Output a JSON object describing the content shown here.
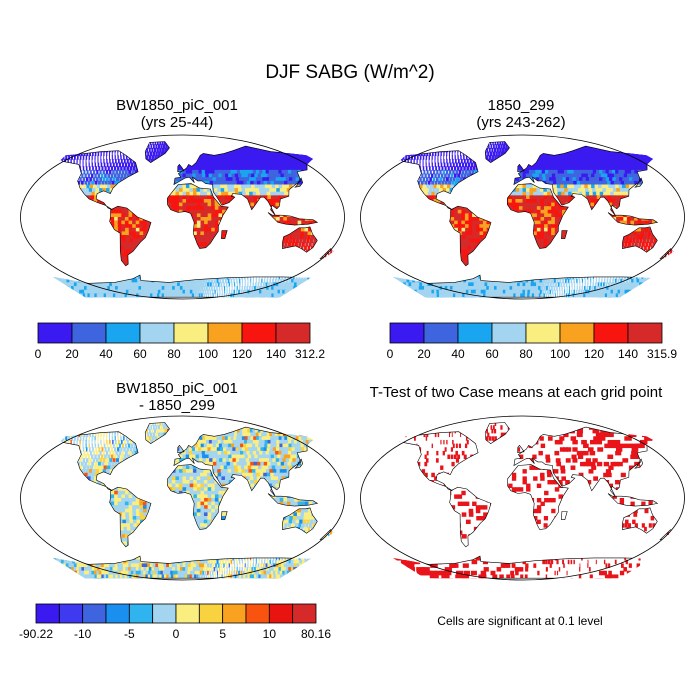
{
  "title": "DJF SABG (W/m^2)",
  "panels": {
    "tl": {
      "title_line1": "BW1850_piC_001",
      "title_line2": "(yrs 25-44)"
    },
    "tr": {
      "title_line1": "1850_299",
      "title_line2": "(yrs 243-262)"
    },
    "bl": {
      "title_line1": "BW1850_piC_001",
      "title_line2": "- 1850_299"
    },
    "br": {
      "title": "T-Test of two Case means at each grid point",
      "note": "Cells are significant at 0.1 level"
    }
  },
  "colorbars": {
    "tl": {
      "colors": [
        "#3a1af0",
        "#3f64e0",
        "#1aa5f0",
        "#a3d4f0",
        "#fbee80",
        "#f9a21f",
        "#f8140f",
        "#d62a2a"
      ],
      "labels": [
        "0",
        "20",
        "40",
        "60",
        "80",
        "100",
        "120",
        "140",
        "312.2"
      ]
    },
    "tr": {
      "colors": [
        "#3a1af0",
        "#3f64e0",
        "#1aa5f0",
        "#a3d4f0",
        "#fbee80",
        "#f9a21f",
        "#f8140f",
        "#d62a2a"
      ],
      "labels": [
        "0",
        "20",
        "40",
        "60",
        "80",
        "100",
        "120",
        "140",
        "315.9"
      ]
    },
    "bl": {
      "colors": [
        "#3a1af0",
        "#3f3af0",
        "#3f64e0",
        "#1a8ff0",
        "#30b4f0",
        "#a3d4f0",
        "#fbee80",
        "#f9d240",
        "#f9a21f",
        "#f8540f",
        "#e8140f",
        "#d62a2a"
      ],
      "labels": [
        "-90.22",
        "-10",
        "-5",
        "0",
        "5",
        "10",
        "80.16"
      ]
    }
  },
  "map_colors": {
    "ocean": "#ffffff",
    "coast": "#000000",
    "significant": "#e8141a"
  }
}
